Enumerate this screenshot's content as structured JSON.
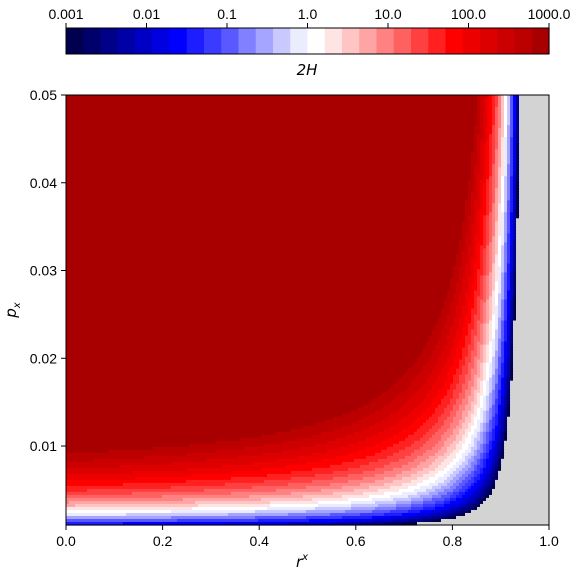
{
  "chart_data": [
    {
      "type": "contourf",
      "role": "colorbar",
      "label_main": "2H",
      "scale": "log",
      "range": [
        0.001,
        1000.0
      ],
      "levels_per_decade": 4,
      "ticks": [
        0.001,
        0.01,
        0.1,
        1.0,
        10.0,
        100.0,
        1000.0
      ],
      "tick_labels": [
        "0.001",
        "0.01",
        "0.1",
        "1.0",
        "10.0",
        "100.0",
        "1000.0"
      ],
      "band_colors": [
        "#00004f",
        "#00006c",
        "#000089",
        "#0000a7",
        "#0000c4",
        "#0000e1",
        "#0000ff",
        "#1d1dff",
        "#3b3bff",
        "#5959ff",
        "#8181ff",
        "#a5a5ff",
        "#c9c9ff",
        "#ececff",
        "#ffffff",
        "#ffe4e4",
        "#ffc4c4",
        "#ffa4a4",
        "#ff8181",
        "#ff6161",
        "#ff4040",
        "#ff2020",
        "#fe0000",
        "#ec0000",
        "#dc0000",
        "#cc0000",
        "#bc0000",
        "#a80000"
      ]
    },
    {
      "type": "contourf",
      "role": "main",
      "x_label_main": "r",
      "x_label_sup": "x",
      "y_label_main": "p",
      "y_label_sub": "x",
      "xlim": [
        0.0,
        1.0
      ],
      "ylim": [
        0.001,
        0.05
      ],
      "x_ticks": [
        0.0,
        0.2,
        0.4,
        0.6,
        0.8,
        1.0
      ],
      "x_tick_labels": [
        "0.0",
        "0.2",
        "0.4",
        "0.6",
        "0.8",
        "1.0"
      ],
      "y_ticks": [
        0.01,
        0.02,
        0.03,
        0.04,
        0.05
      ],
      "y_tick_labels": [
        "0.01",
        "0.02",
        "0.03",
        "0.04",
        "0.05"
      ],
      "undefined_region_color": "#d3d3d3"
    }
  ]
}
